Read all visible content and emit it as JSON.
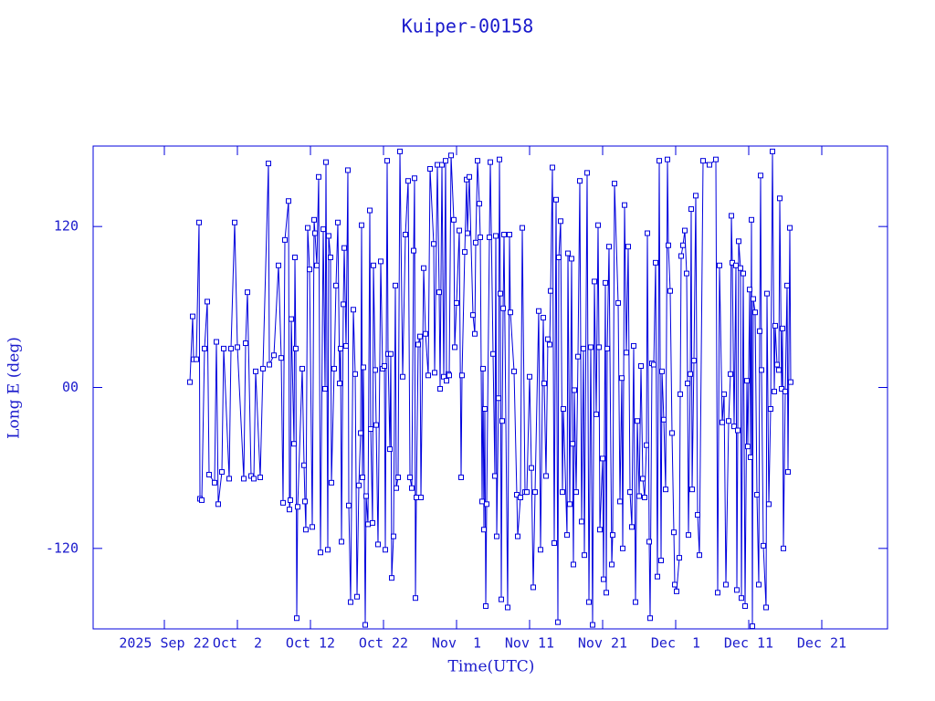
{
  "chart_data": {
    "type": "line",
    "title": "Kuiper-00158",
    "x_label": "Time(UTC)",
    "y_label": "Long E (deg)",
    "color": "#0000dd",
    "markers": true,
    "xlim": [
      "2025-09-12T06:00",
      "2025-12-30T00:00"
    ],
    "xticks": [
      {
        "value": "2025-09-22",
        "label": "2025 Sep 22"
      },
      {
        "value": "2025-10-02",
        "label": "Oct  2"
      },
      {
        "value": "2025-10-12",
        "label": "Oct 12"
      },
      {
        "value": "2025-10-22",
        "label": "Oct 22"
      },
      {
        "value": "2025-11-01",
        "label": "Nov  1"
      },
      {
        "value": "2025-11-11",
        "label": "Nov 11"
      },
      {
        "value": "2025-11-21",
        "label": "Nov 21"
      },
      {
        "value": "2025-12-01",
        "label": "Dec  1"
      },
      {
        "value": "2025-12-11",
        "label": "Dec 11"
      },
      {
        "value": "2025-12-21",
        "label": "Dec 21"
      }
    ],
    "ylim": [
      -180,
      180
    ],
    "yticks": [
      -120,
      {
        "value": 0,
        "label": "00"
      },
      120
    ],
    "x": [
      "2025-09-25T12:00",
      "2025-09-25T21:00",
      "2025-09-26T00:00",
      "2025-09-26T09:00",
      "2025-09-26T18:00",
      "2025-09-26T21:00",
      "2025-09-27T03:00",
      "2025-09-27T12:00",
      "2025-09-27T21:00",
      "2025-09-28T03:00",
      "2025-09-28T21:00",
      "2025-09-29T03:00",
      "2025-09-29T09:00",
      "2025-09-29T21:00",
      "2025-09-30T03:00",
      "2025-09-30T21:00",
      "2025-10-01T03:00",
      "2025-10-01T15:00",
      "2025-10-02T00:00",
      "2025-10-02T21:00",
      "2025-10-03T03:00",
      "2025-10-03T09:00",
      "2025-10-03T21:00",
      "2025-10-04T06:00",
      "2025-10-04T12:00",
      "2025-10-05T03:00",
      "2025-10-05T12:00",
      "2025-10-06T06:00",
      "2025-10-06T09:00",
      "2025-10-07T00:00",
      "2025-10-07T15:00",
      "2025-10-08T00:00",
      "2025-10-08T06:00",
      "2025-10-08T12:00",
      "2025-10-09T00:00",
      "2025-10-09T03:00",
      "2025-10-09T06:00",
      "2025-10-09T09:00",
      "2025-10-09T18:00",
      "2025-10-09T21:00",
      "2025-10-10T00:00",
      "2025-10-10T03:00",
      "2025-10-10T06:00",
      "2025-10-10T21:00",
      "2025-10-11T03:00",
      "2025-10-11T06:00",
      "2025-10-11T09:00",
      "2025-10-11T15:00",
      "2025-10-11T21:00",
      "2025-10-12T06:00",
      "2025-10-12T12:00",
      "2025-10-12T15:00",
      "2025-10-12T21:00",
      "2025-10-13T03:00",
      "2025-10-13T09:00",
      "2025-10-13T18:00",
      "2025-10-14T00:00",
      "2025-10-14T03:00",
      "2025-10-14T09:00",
      "2025-10-14T12:00",
      "2025-10-14T18:00",
      "2025-10-14T21:00",
      "2025-10-15T06:00",
      "2025-10-15T12:00",
      "2025-10-15T18:00",
      "2025-10-16T00:00",
      "2025-10-16T03:00",
      "2025-10-16T06:00",
      "2025-10-16T12:00",
      "2025-10-16T15:00",
      "2025-10-16T21:00",
      "2025-10-17T03:00",
      "2025-10-17T06:00",
      "2025-10-17T12:00",
      "2025-10-17T21:00",
      "2025-10-18T03:00",
      "2025-10-18T09:00",
      "2025-10-18T15:00",
      "2025-10-18T21:00",
      "2025-10-19T00:00",
      "2025-10-19T03:00",
      "2025-10-19T06:00",
      "2025-10-19T12:00",
      "2025-10-19T15:00",
      "2025-10-19T21:00",
      "2025-10-20T03:00",
      "2025-10-20T06:00",
      "2025-10-20T12:00",
      "2025-10-20T15:00",
      "2025-10-20T21:00",
      "2025-10-21T00:00",
      "2025-10-21T06:00",
      "2025-10-21T15:00",
      "2025-10-21T21:00",
      "2025-10-22T03:00",
      "2025-10-22T06:00",
      "2025-10-22T12:00",
      "2025-10-22T15:00",
      "2025-10-22T21:00",
      "2025-10-23T00:00",
      "2025-10-23T03:00",
      "2025-10-23T09:00",
      "2025-10-23T15:00",
      "2025-10-23T18:00",
      "2025-10-24T00:00",
      "2025-10-24T06:00",
      "2025-10-24T15:00",
      "2025-10-25T00:00",
      "2025-10-25T09:00",
      "2025-10-25T15:00",
      "2025-10-25T21:00",
      "2025-10-26T03:00",
      "2025-10-26T06:00",
      "2025-10-26T09:00",
      "2025-10-26T12:00",
      "2025-10-26T18:00",
      "2025-10-27T00:00",
      "2025-10-27T03:00",
      "2025-10-27T12:00",
      "2025-10-27T18:00",
      "2025-10-28T03:00",
      "2025-10-28T09:00",
      "2025-10-28T21:00",
      "2025-10-29T00:00",
      "2025-10-29T09:00",
      "2025-10-29T15:00",
      "2025-10-29T18:00",
      "2025-10-30T00:00",
      "2025-10-30T06:00",
      "2025-10-30T12:00",
      "2025-10-30T15:00",
      "2025-10-30T21:00",
      "2025-10-31T00:00",
      "2025-10-31T06:00",
      "2025-10-31T15:00",
      "2025-10-31T18:00",
      "2025-11-01T00:00",
      "2025-11-01T09:00",
      "2025-11-01T15:00",
      "2025-11-01T18:00",
      "2025-11-02T03:00",
      "2025-11-02T09:00",
      "2025-11-02T12:00",
      "2025-11-02T18:00",
      "2025-11-03T06:00",
      "2025-11-03T12:00",
      "2025-11-03T15:00",
      "2025-11-03T21:00",
      "2025-11-04T03:00",
      "2025-11-04T06:00",
      "2025-11-04T12:00",
      "2025-11-04T15:00",
      "2025-11-04T18:00",
      "2025-11-04T21:00",
      "2025-11-05T00:00",
      "2025-11-05T03:00",
      "2025-11-05T12:00",
      "2025-11-05T15:00",
      "2025-11-06T00:00",
      "2025-11-06T06:00",
      "2025-11-06T09:00",
      "2025-11-06T12:00",
      "2025-11-06T18:00",
      "2025-11-06T21:00",
      "2025-11-07T00:00",
      "2025-11-07T03:00",
      "2025-11-07T06:00",
      "2025-11-07T09:00",
      "2025-11-07T12:00",
      "2025-11-08T00:00",
      "2025-11-08T06:00",
      "2025-11-08T09:00",
      "2025-11-08T21:00",
      "2025-11-09T06:00",
      "2025-11-09T09:00",
      "2025-11-09T18:00",
      "2025-11-10T00:00",
      "2025-11-10T09:00",
      "2025-11-10T15:00",
      "2025-11-11T00:00",
      "2025-11-11T06:00",
      "2025-11-11T12:00",
      "2025-11-11T18:00",
      "2025-11-12T06:00",
      "2025-11-12T12:00",
      "2025-11-12T21:00",
      "2025-11-13T00:00",
      "2025-11-13T06:00",
      "2025-11-13T12:00",
      "2025-11-13T18:00",
      "2025-11-13T21:00",
      "2025-11-14T03:00",
      "2025-11-14T09:00",
      "2025-11-14T15:00",
      "2025-11-14T21:00",
      "2025-11-15T00:00",
      "2025-11-15T06:00",
      "2025-11-15T12:00",
      "2025-11-15T15:00",
      "2025-11-16T03:00",
      "2025-11-16T06:00",
      "2025-11-16T12:00",
      "2025-11-16T18:00",
      "2025-11-16T21:00",
      "2025-11-17T00:00",
      "2025-11-17T03:00",
      "2025-11-17T09:00",
      "2025-11-17T15:00",
      "2025-11-17T21:00",
      "2025-11-18T03:00",
      "2025-11-18T09:00",
      "2025-11-18T12:00",
      "2025-11-18T21:00",
      "2025-11-19T03:00",
      "2025-11-19T09:00",
      "2025-11-19T15:00",
      "2025-11-19T21:00",
      "2025-11-20T03:00",
      "2025-11-20T09:00",
      "2025-11-20T12:00",
      "2025-11-20T15:00",
      "2025-11-21T00:00",
      "2025-11-21T03:00",
      "2025-11-21T09:00",
      "2025-11-21T12:00",
      "2025-11-21T15:00",
      "2025-11-21T21:00",
      "2025-11-22T06:00",
      "2025-11-22T09:00",
      "2025-11-22T15:00",
      "2025-11-23T03:00",
      "2025-11-23T09:00",
      "2025-11-23T15:00",
      "2025-11-23T18:00",
      "2025-11-24T00:00",
      "2025-11-24T06:00",
      "2025-11-24T12:00",
      "2025-11-24T18:00",
      "2025-11-25T00:00",
      "2025-11-25T06:00",
      "2025-11-25T12:00",
      "2025-11-25T18:00",
      "2025-11-26T00:00",
      "2025-11-26T06:00",
      "2025-11-26T12:00",
      "2025-11-26T18:00",
      "2025-11-27T00:00",
      "2025-11-27T03:00",
      "2025-11-27T09:00",
      "2025-11-27T12:00",
      "2025-11-27T18:00",
      "2025-11-28T00:00",
      "2025-11-28T06:00",
      "2025-11-28T12:00",
      "2025-11-28T18:00",
      "2025-11-29T00:00",
      "2025-11-29T03:00",
      "2025-11-29T09:00",
      "2025-11-29T15:00",
      "2025-11-29T21:00",
      "2025-11-30T00:00",
      "2025-11-30T06:00",
      "2025-11-30T12:00",
      "2025-11-30T18:00",
      "2025-11-30T21:00",
      "2025-12-01T03:00",
      "2025-12-01T12:00",
      "2025-12-01T15:00",
      "2025-12-01T18:00",
      "2025-12-02T00:00",
      "2025-12-02T06:00",
      "2025-12-02T12:00",
      "2025-12-02T15:00",
      "2025-12-02T18:00",
      "2025-12-03T00:00",
      "2025-12-03T03:00",
      "2025-12-03T06:00",
      "2025-12-03T12:00",
      "2025-12-03T18:00",
      "2025-12-04T00:00",
      "2025-12-04T06:00",
      "2025-12-04T18:00",
      "2025-12-05T15:00",
      "2025-12-06T12:00",
      "2025-12-06T18:00",
      "2025-12-07T00:00",
      "2025-12-07T09:00",
      "2025-12-07T15:00",
      "2025-12-07T21:00",
      "2025-12-08T06:00",
      "2025-12-08T12:00",
      "2025-12-08T15:00",
      "2025-12-08T18:00",
      "2025-12-09T00:00",
      "2025-12-09T06:00",
      "2025-12-09T09:00",
      "2025-12-09T12:00",
      "2025-12-09T15:00",
      "2025-12-09T21:00",
      "2025-12-10T00:00",
      "2025-12-10T06:00",
      "2025-12-10T12:00",
      "2025-12-10T18:00",
      "2025-12-10T21:00",
      "2025-12-11T03:00",
      "2025-12-11T06:00",
      "2025-12-11T09:00",
      "2025-12-11T12:00",
      "2025-12-11T15:00",
      "2025-12-11T21:00",
      "2025-12-12T03:00",
      "2025-12-12T09:00",
      "2025-12-12T12:00",
      "2025-12-12T15:00",
      "2025-12-12T18:00",
      "2025-12-13T00:00",
      "2025-12-13T09:00",
      "2025-12-13T12:00",
      "2025-12-13T18:00",
      "2025-12-14T00:00",
      "2025-12-14T06:00",
      "2025-12-14T12:00",
      "2025-12-14T15:00",
      "2025-12-14T21:00",
      "2025-12-15T03:00",
      "2025-12-15T06:00",
      "2025-12-15T12:00",
      "2025-12-15T15:00",
      "2025-12-15T18:00",
      "2025-12-16T00:00",
      "2025-12-16T06:00",
      "2025-12-16T09:00",
      "2025-12-16T15:00",
      "2025-12-16T18:00"
    ],
    "values": [
      4,
      53,
      21,
      21,
      123,
      -83,
      -84,
      29,
      64,
      -65,
      -71,
      34,
      -87,
      -63,
      29,
      -68,
      29,
      123,
      30,
      -68,
      33,
      71,
      -66,
      -68,
      12,
      -67,
      14,
      167,
      17,
      24,
      91,
      22,
      -86,
      110,
      139,
      -91,
      -84,
      51,
      -42,
      97,
      29,
      -172,
      -89,
      14,
      -58,
      -85,
      -106,
      119,
      88,
      -104,
      125,
      115,
      91,
      157,
      -123,
      118,
      -1,
      168,
      -121,
      113,
      97,
      -71,
      14,
      76,
      123,
      3,
      29,
      -115,
      62,
      104,
      31,
      162,
      -88,
      -160,
      58,
      10,
      -156,
      -73,
      -34,
      121,
      -67,
      15,
      -177,
      -81,
      -102,
      132,
      -31,
      -101,
      91,
      13,
      -28,
      -117,
      94,
      14,
      16,
      -121,
      169,
      25,
      -46,
      25,
      -142,
      -111,
      76,
      -75,
      -67,
      176,
      8,
      114,
      154,
      -67,
      -75,
      102,
      156,
      -157,
      -82,
      32,
      38,
      -82,
      89,
      40,
      9,
      163,
      107,
      11,
      166,
      71,
      -1,
      166,
      8,
      169,
      5,
      10,
      9,
      173,
      125,
      30,
      63,
      117,
      -67,
      9,
      101,
      155,
      115,
      157,
      54,
      40,
      108,
      169,
      137,
      112,
      -85,
      14,
      -106,
      -16,
      -163,
      -87,
      112,
      168,
      25,
      -66,
      113,
      -111,
      -8,
      170,
      70,
      -158,
      -25,
      59,
      114,
      -164,
      114,
      56,
      12,
      -80,
      -111,
      -82,
      119,
      -78,
      -78,
      8,
      -60,
      -149,
      -78,
      57,
      -121,
      52,
      3,
      -66,
      36,
      32,
      72,
      164,
      -116,
      140,
      -175,
      97,
      124,
      -78,
      -16,
      -110,
      100,
      -87,
      96,
      -42,
      -132,
      -2,
      -78,
      23,
      154,
      -100,
      29,
      -125,
      160,
      -160,
      30,
      -177,
      79,
      -20,
      121,
      30,
      -106,
      -53,
      -143,
      78,
      -153,
      29,
      105,
      -132,
      -110,
      152,
      63,
      -85,
      7,
      -120,
      136,
      26,
      105,
      -78,
      -104,
      31,
      -160,
      -25,
      -81,
      16,
      -68,
      -82,
      -43,
      115,
      -115,
      -172,
      18,
      17,
      93,
      -141,
      169,
      -129,
      12,
      -24,
      -76,
      170,
      106,
      72,
      -34,
      -108,
      -147,
      -152,
      -127,
      -5,
      98,
      106,
      117,
      85,
      3,
      -110,
      10,
      133,
      -76,
      20,
      143,
      -95,
      -125,
      169,
      166,
      170,
      -153,
      91,
      -26,
      -5,
      -147,
      -25,
      10,
      128,
      93,
      -29,
      91,
      -151,
      -32,
      109,
      89,
      -157,
      85,
      -163,
      5,
      -44,
      73,
      -52,
      125,
      -178,
      66,
      56,
      -80,
      -147,
      42,
      158,
      13,
      -118,
      -164,
      70,
      -87,
      -16,
      176,
      -3,
      46,
      17,
      13,
      141,
      -1,
      44,
      -120,
      -3,
      76,
      -63,
      119,
      4
    ]
  }
}
